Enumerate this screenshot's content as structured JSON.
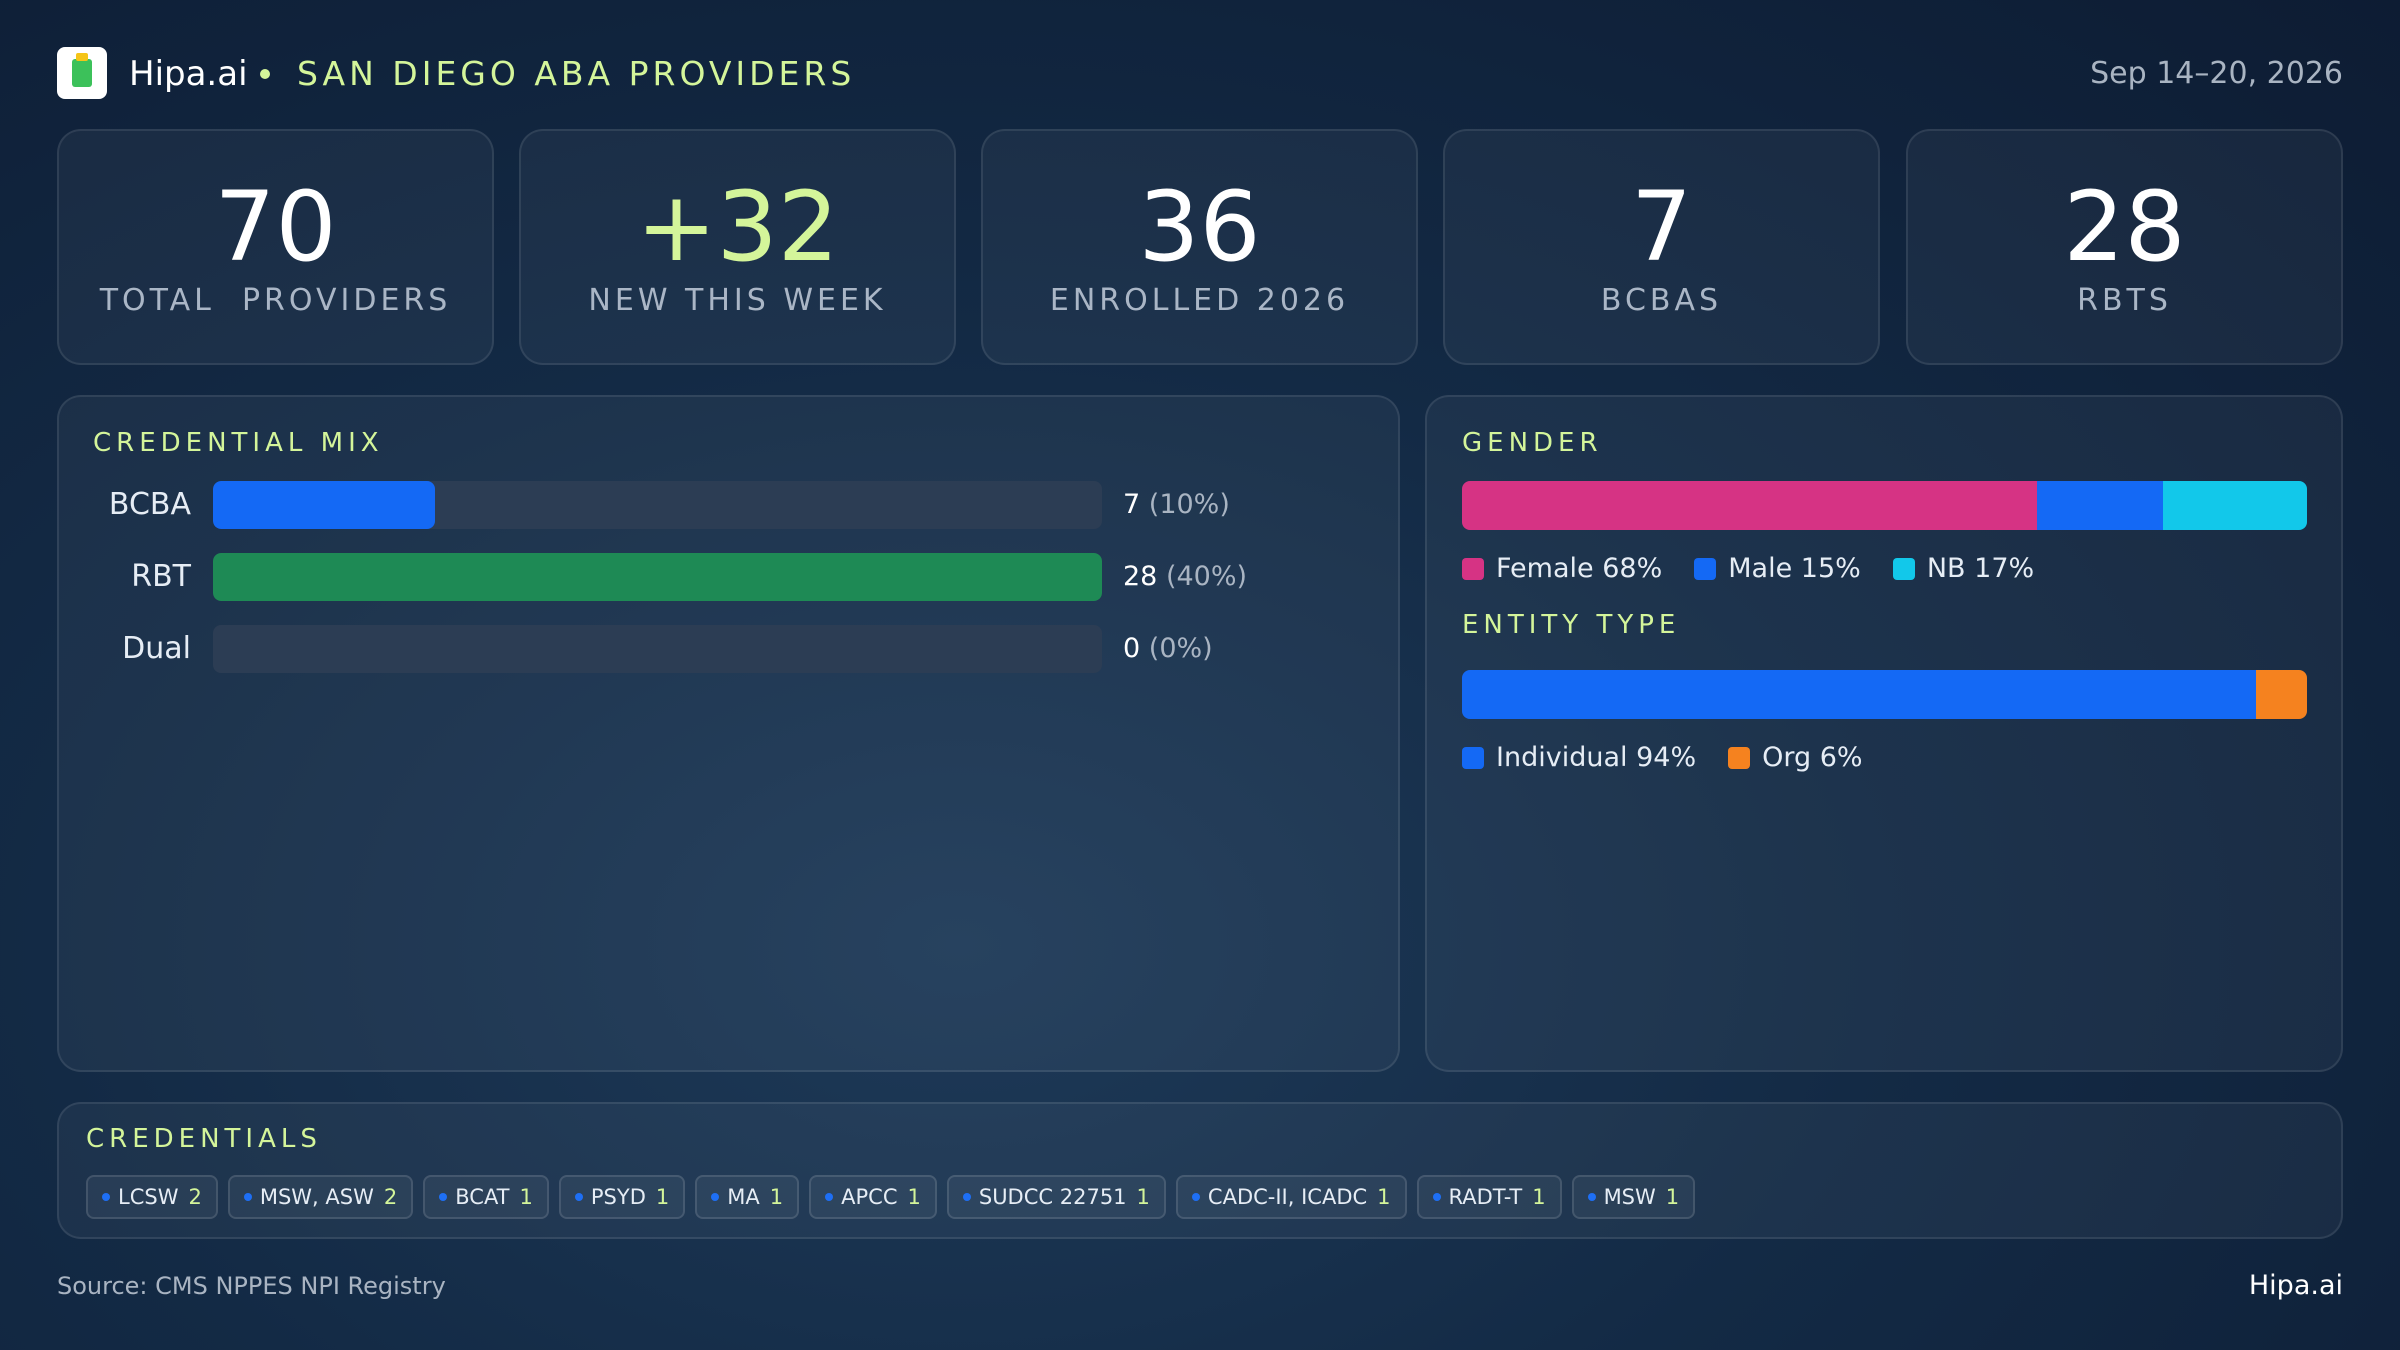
{
  "header": {
    "brand": "Hipa.ai",
    "title": "SAN DIEGO ABA PROVIDERS",
    "date": "Sep 14–20, 2026"
  },
  "kpis": [
    {
      "value": "70",
      "label": "TOTAL  PROVIDERS"
    },
    {
      "value": "+32",
      "label": "NEW THIS WEEK",
      "accent": true
    },
    {
      "value": "36",
      "label": "ENROLLED 2026"
    },
    {
      "value": "7",
      "label": "BCBAS"
    },
    {
      "value": "28",
      "label": "RBTS"
    }
  ],
  "credential_mix": {
    "title": "CREDENTIAL MIX",
    "categories": [
      "BCBA",
      "RBT",
      "Dual"
    ],
    "values": [
      7,
      28,
      0
    ],
    "percent_labels": [
      "(10%)",
      "(40%)",
      "(0%)"
    ],
    "colors": [
      "#1469f5",
      "#1e8a55",
      "#1469f5"
    ],
    "xlim": [
      0,
      28
    ]
  },
  "gender": {
    "title": "GENDER",
    "segments": [
      {
        "name": "Female",
        "value": 68,
        "label": "68%",
        "color": "#d63384"
      },
      {
        "name": "Male",
        "value": 15,
        "label": "15%",
        "color": "#1469f5"
      },
      {
        "name": "NB",
        "value": 17,
        "label": "17%",
        "color": "#12c8ea"
      }
    ]
  },
  "entity_type": {
    "title": "ENTITY TYPE",
    "segments": [
      {
        "name": "Individual",
        "value": 94,
        "label": "94%",
        "color": "#1469f5"
      },
      {
        "name": "Org",
        "value": 6,
        "label": "6%",
        "color": "#f5821f"
      }
    ]
  },
  "credentials": {
    "title": "CREDENTIALS",
    "items": [
      {
        "name": "LCSW",
        "count": "2"
      },
      {
        "name": "MSW, ASW",
        "count": "2"
      },
      {
        "name": "BCAT",
        "count": "1"
      },
      {
        "name": "PSYD",
        "count": "1"
      },
      {
        "name": "MA",
        "count": "1"
      },
      {
        "name": "APCC",
        "count": "1"
      },
      {
        "name": "SUDCC 22751",
        "count": "1"
      },
      {
        "name": "CADC-II, ICADC",
        "count": "1"
      },
      {
        "name": "RADT-T",
        "count": "1"
      },
      {
        "name": "MSW",
        "count": "1"
      }
    ]
  },
  "footer": {
    "source": "Source: CMS NPPES NPI Registry",
    "brand": "Hipa.ai"
  }
}
